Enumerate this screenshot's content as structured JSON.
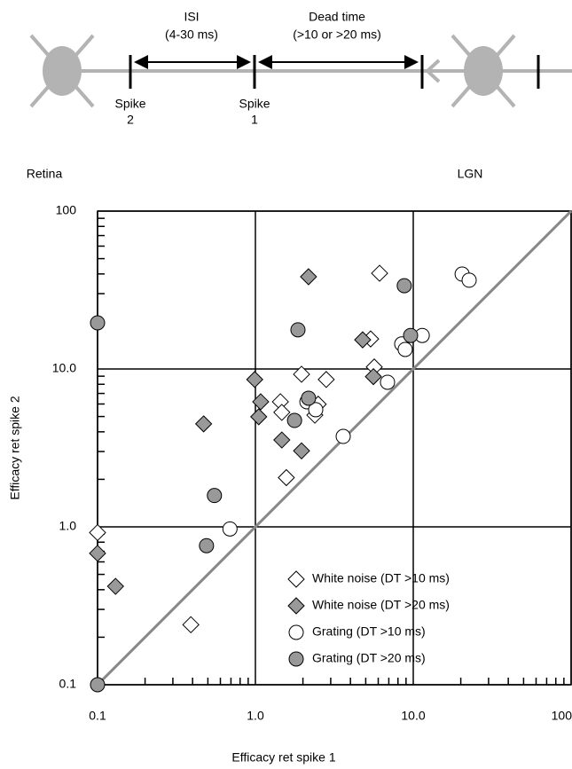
{
  "diagram": {
    "isi": "ISI",
    "isi_range": "(4-30 ms)",
    "dead_time": "Dead time",
    "dead_time_range": "(>10 or >20 ms)",
    "spike2": [
      "Spike",
      "2"
    ],
    "spike1": [
      "Spike",
      "1"
    ],
    "retina": "Retina",
    "lgn": "LGN"
  },
  "chart_data": {
    "type": "scatter",
    "xlabel": "Efficacy ret spike 1",
    "ylabel": "Efficacy ret spike 2",
    "log_x": true,
    "log_y": true,
    "grid": true,
    "identity_line": true,
    "legend": "lower right",
    "xlim": [
      0.1,
      100
    ],
    "ylim": [
      0.1,
      100
    ],
    "xticks": [
      0.1,
      {
        "value": 1,
        "label": "1.0"
      },
      {
        "value": 10,
        "label": "10.0"
      },
      100
    ],
    "yticks": [
      0.1,
      {
        "value": 1,
        "label": "1.0"
      },
      {
        "value": 10,
        "label": "10.0"
      },
      100
    ],
    "series": [
      {
        "name": "White noise (DT >10 ms)",
        "marker": "diamond",
        "color": "#ffffff",
        "x": [
          0.1,
          0.39,
          1.57,
          1.44,
          1.47,
          1.96,
          2.81,
          2.5,
          2.38,
          6.12,
          5.37,
          5.66
        ],
        "y": [
          0.92,
          0.24,
          2.05,
          6.2,
          5.31,
          9.26,
          8.58,
          5.98,
          5.1,
          40.4,
          15.5,
          10.3
        ]
      },
      {
        "name": "White noise (DT >20 ms)",
        "marker": "diamond",
        "color": "#999999",
        "x": [
          2.17,
          4.78,
          5.59,
          0.99,
          1.08,
          1.05,
          1.47,
          1.96,
          0.47,
          0.1,
          0.13
        ],
        "y": [
          38.4,
          15.3,
          8.94,
          8.58,
          6.2,
          4.98,
          3.55,
          3.03,
          4.49,
          0.68,
          0.42
        ]
      },
      {
        "name": "Grating (DT >10 ms)",
        "marker": "circle",
        "color": "#ffffff",
        "x": [
          20.4,
          22.6,
          11.4,
          8.45,
          8.89,
          6.87,
          2.12,
          2.41,
          3.6,
          0.69
        ],
        "y": [
          39.9,
          36.5,
          16.3,
          14.4,
          13.3,
          8.24,
          6.2,
          5.52,
          3.74,
          0.97
        ]
      },
      {
        "name": "Grating (DT >20 ms)",
        "marker": "circle",
        "color": "#999999",
        "x": [
          0.1,
          1.86,
          8.77,
          9.62,
          2.17,
          1.77,
          0.55,
          0.49,
          0.1
        ],
        "y": [
          19.6,
          17.7,
          33.7,
          16.3,
          6.53,
          4.72,
          1.58,
          0.76,
          0.1
        ]
      }
    ]
  }
}
